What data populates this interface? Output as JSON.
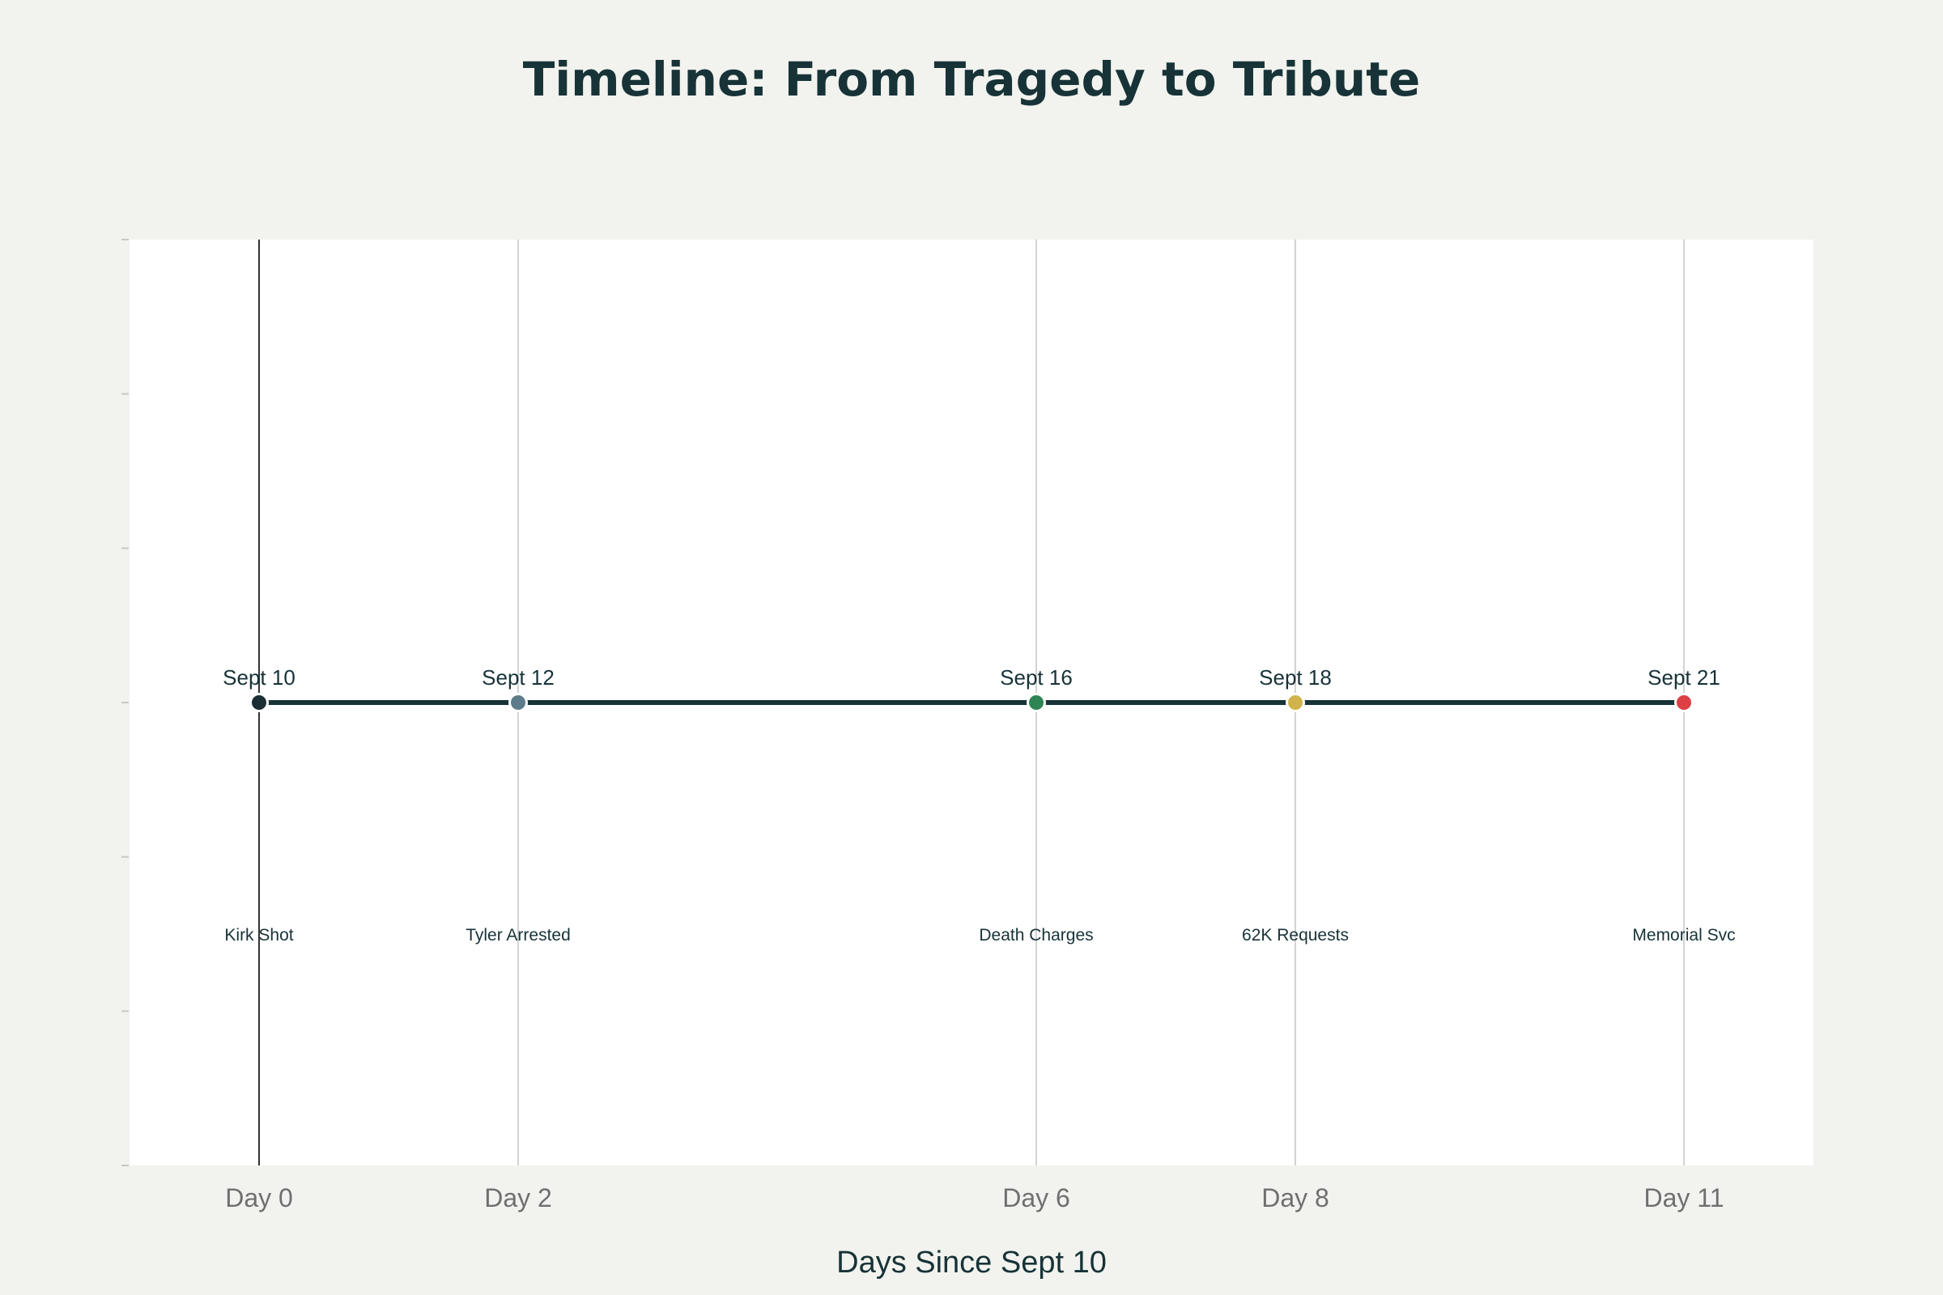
{
  "chart_data": {
    "type": "line",
    "title": "Timeline: From Tragedy to Tribute",
    "xlabel": "Days Since Sept 10",
    "ylabel": "",
    "xlim": [
      -1.0,
      12.0
    ],
    "ylim": [
      -3,
      3
    ],
    "grid": true,
    "x": [
      0,
      2,
      6,
      8,
      11
    ],
    "y": [
      0,
      0,
      0,
      0,
      0
    ],
    "tick_labels": [
      "Day 0",
      "Day 2",
      "Day 6",
      "Day 8",
      "Day 11"
    ],
    "date_labels": [
      "Sept 10",
      "Sept 12",
      "Sept 16",
      "Sept 18",
      "Sept 21"
    ],
    "event_labels": [
      "Kirk Shot",
      "Tyler Arrested",
      "Death Charges",
      "62K Requests",
      "Memorial Svc"
    ],
    "point_colors": [
      "#1b2e35",
      "#5d7b8a",
      "#2e8553",
      "#d1b34b",
      "#dd3f45"
    ],
    "line_color": "#173338"
  }
}
